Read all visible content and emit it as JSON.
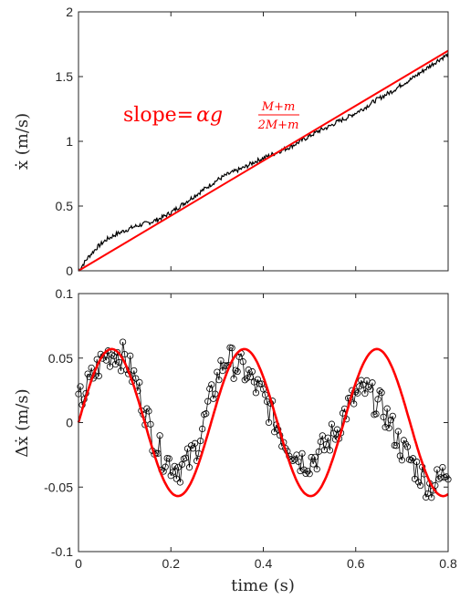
{
  "chart_data": [
    {
      "type": "line",
      "xlabel": "",
      "ylabel": "ẋ (m/s)",
      "xlim": [
        0,
        0.8
      ],
      "ylim": [
        0,
        2
      ],
      "xticks": [
        0,
        0.2,
        0.4,
        0.6,
        0.8
      ],
      "xtick_labels": [
        "",
        "",
        "",
        "",
        ""
      ],
      "yticks": [
        0,
        0.5,
        1,
        1.5,
        2
      ],
      "ytick_labels": [
        "0",
        "0.5",
        "1",
        "1.5",
        "2"
      ],
      "grid": false,
      "annotation": {
        "prefix": "slope=",
        "expr": "αg",
        "numerator": "M+m",
        "denominator": "2M+m",
        "color": "#ff0000"
      },
      "series": [
        {
          "color": "#000000",
          "style": "noisy-line",
          "x": [
            0,
            0.02,
            0.04,
            0.06,
            0.08,
            0.1,
            0.12,
            0.14,
            0.16,
            0.18,
            0.2,
            0.22,
            0.24,
            0.26,
            0.28,
            0.3,
            0.32,
            0.34,
            0.36,
            0.38,
            0.4,
            0.42,
            0.44,
            0.46,
            0.48,
            0.5,
            0.52,
            0.54,
            0.56,
            0.58,
            0.6,
            0.62,
            0.64,
            0.66,
            0.68,
            0.7,
            0.72,
            0.74,
            0.76,
            0.78,
            0.8
          ],
          "y": [
            0.0,
            0.1,
            0.18,
            0.24,
            0.28,
            0.31,
            0.34,
            0.36,
            0.38,
            0.41,
            0.45,
            0.5,
            0.55,
            0.6,
            0.65,
            0.7,
            0.74,
            0.77,
            0.8,
            0.84,
            0.87,
            0.9,
            0.93,
            0.96,
            1.0,
            1.04,
            1.08,
            1.11,
            1.15,
            1.18,
            1.22,
            1.26,
            1.31,
            1.35,
            1.39,
            1.44,
            1.48,
            1.53,
            1.58,
            1.63,
            1.67
          ]
        },
        {
          "color": "#ff0000",
          "style": "line",
          "x": [
            0,
            0.8
          ],
          "y": [
            0.0,
            1.7
          ]
        }
      ]
    },
    {
      "type": "line",
      "xlabel": "time (s)",
      "ylabel": "Δẋ (m/s)",
      "xlim": [
        0,
        0.8
      ],
      "ylim": [
        -0.1,
        0.1
      ],
      "xticks": [
        0,
        0.2,
        0.4,
        0.6,
        0.8
      ],
      "xtick_labels": [
        "0",
        "0.2",
        "0.4",
        "0.6",
        "0.8"
      ],
      "yticks": [
        -0.1,
        -0.05,
        0,
        0.05,
        0.1
      ],
      "ytick_labels": [
        "-0.1",
        "-0.05",
        "0",
        "0.05",
        "0.1"
      ],
      "grid": false,
      "series": [
        {
          "color": "#000000",
          "style": "stem-circles",
          "x": [
            0.0,
            0.02,
            0.04,
            0.06,
            0.08,
            0.1,
            0.12,
            0.14,
            0.16,
            0.18,
            0.2,
            0.22,
            0.24,
            0.26,
            0.28,
            0.3,
            0.32,
            0.34,
            0.36,
            0.38,
            0.4,
            0.42,
            0.44,
            0.46,
            0.48,
            0.5,
            0.52,
            0.54,
            0.56,
            0.58,
            0.6,
            0.62,
            0.64,
            0.66,
            0.68,
            0.7,
            0.72,
            0.74,
            0.76,
            0.78,
            0.8
          ],
          "y": [
            0.015,
            0.028,
            0.042,
            0.052,
            0.055,
            0.05,
            0.035,
            0.015,
            -0.01,
            -0.025,
            -0.032,
            -0.035,
            -0.03,
            -0.015,
            0.01,
            0.035,
            0.05,
            0.045,
            0.04,
            0.03,
            0.02,
            0.005,
            -0.01,
            -0.02,
            -0.028,
            -0.03,
            -0.025,
            -0.015,
            -0.005,
            0.01,
            0.02,
            0.025,
            0.018,
            0.01,
            -0.005,
            -0.02,
            -0.03,
            -0.04,
            -0.05,
            -0.045,
            -0.035
          ]
        },
        {
          "color": "#ff0000",
          "style": "sine",
          "amplitude": 0.057,
          "period": 0.287,
          "x_range": [
            0,
            0.8
          ]
        }
      ]
    }
  ]
}
